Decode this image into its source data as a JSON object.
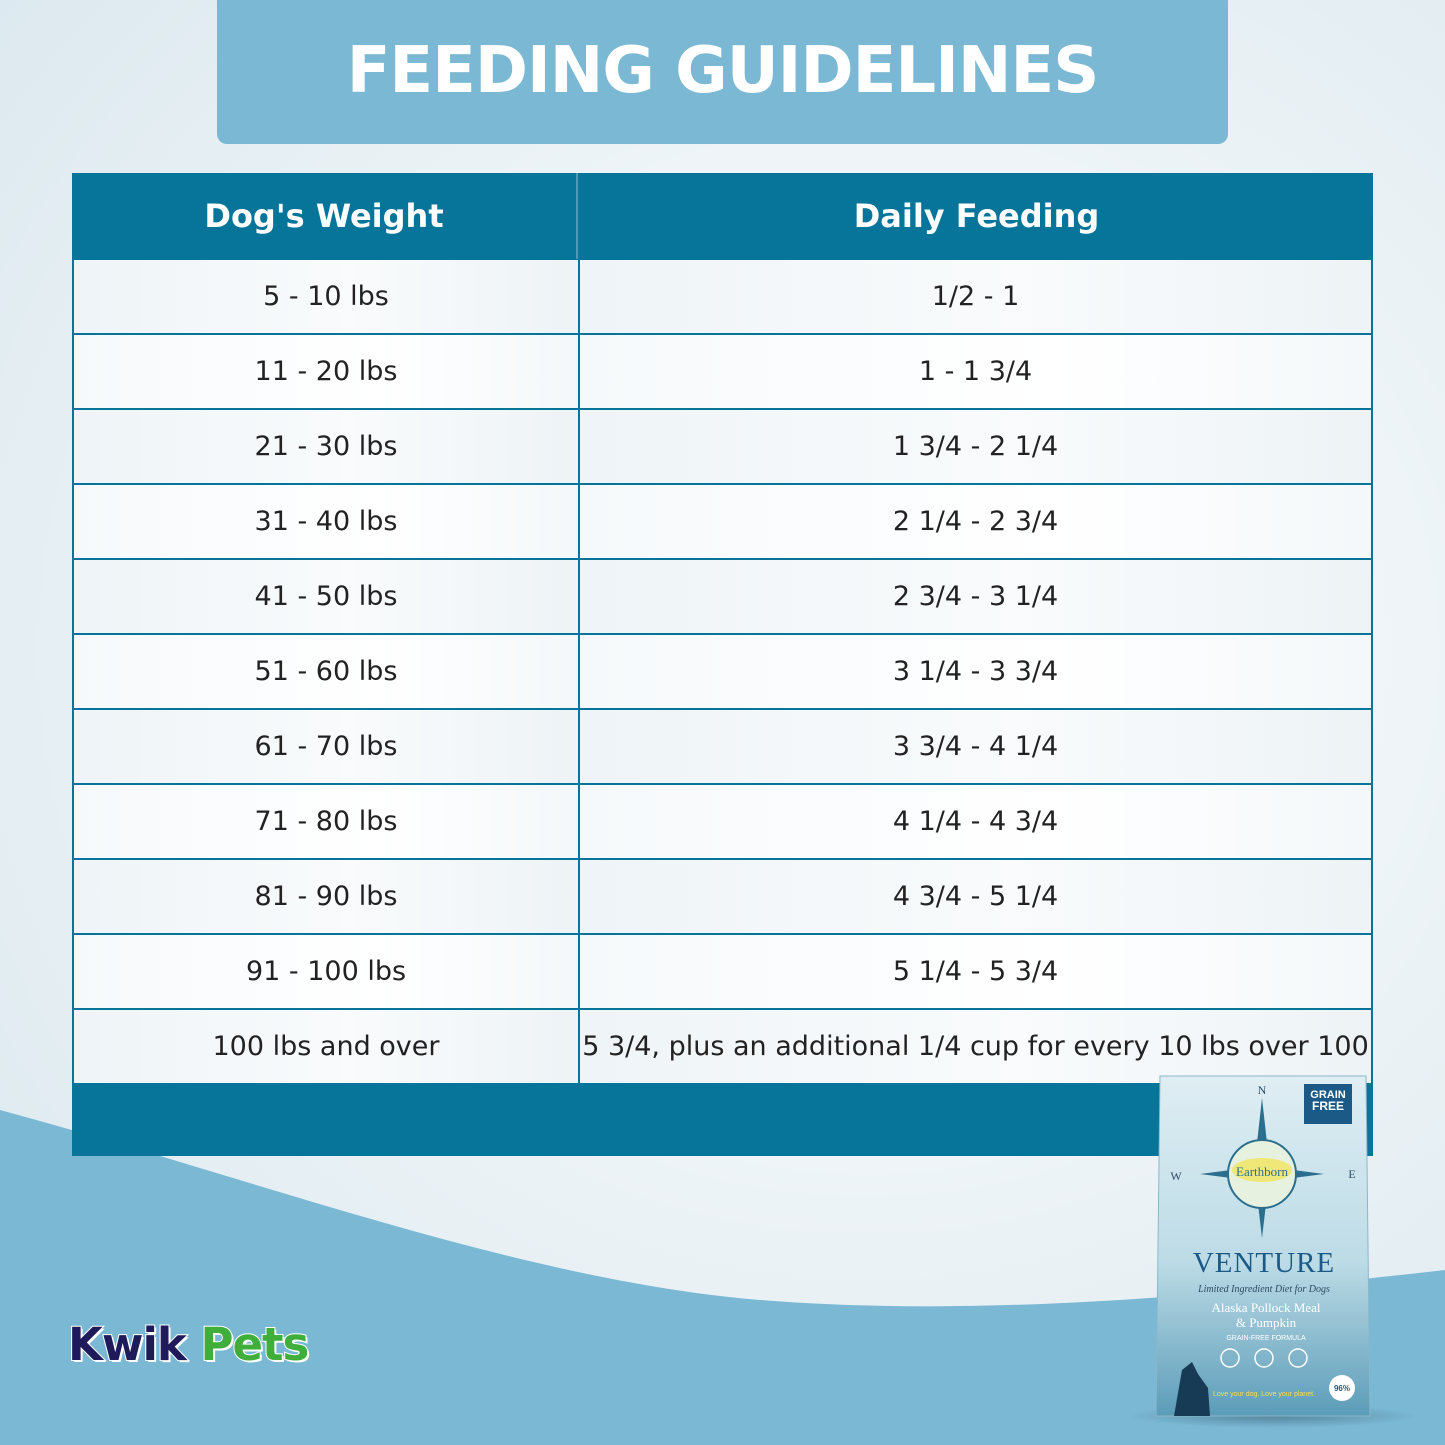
{
  "title": "FEEDING GUIDELINES",
  "table": {
    "headers": [
      "Dog's Weight",
      "Daily Feeding"
    ],
    "rows": [
      [
        "5 - 10 lbs",
        "1/2 - 1"
      ],
      [
        "11 - 20 lbs",
        "1 - 1 3/4"
      ],
      [
        "21 - 30 lbs",
        "1 3/4 - 2 1/4"
      ],
      [
        "31 - 40 lbs",
        "2 1/4 - 2 3/4"
      ],
      [
        "41 - 50 lbs",
        "2 3/4 - 3 1/4"
      ],
      [
        "51 - 60 lbs",
        "3 1/4 - 3 3/4"
      ],
      [
        "61 - 70 lbs",
        "3 3/4 - 4 1/4"
      ],
      [
        "71 - 80 lbs",
        "4 1/4 - 4 3/4"
      ],
      [
        "81 - 90 lbs",
        "4 3/4 - 5 1/4"
      ],
      [
        "91 - 100 lbs",
        "5 1/4 - 5 3/4"
      ],
      [
        "100 lbs and over",
        "5 3/4, plus an additional 1/4 cup for every 10 lbs over 100"
      ]
    ]
  },
  "logo": {
    "word1": "Kwik",
    "word2": "Pets"
  },
  "product": {
    "brand": "Earthborn",
    "name": "VENTURE",
    "subtitle": "Limited Ingredient Diet for Dogs",
    "flavor_line1": "Alaska Pollock Meal",
    "flavor_line2": "& Pumpkin",
    "formula": "GRAIN-FREE FORMULA",
    "badge_line1": "GRAIN",
    "badge_line2": "FREE",
    "compass": [
      "N",
      "W",
      "E"
    ],
    "tagline": "Love your dog. Love your planet.",
    "protein": "96%"
  },
  "colors": {
    "title_bg": "#7ab8d4",
    "table_header": "#07749a",
    "wave": "#7ab8d4",
    "logo_kwik": "#1f1a5a",
    "logo_pets": "#3fae3a"
  }
}
